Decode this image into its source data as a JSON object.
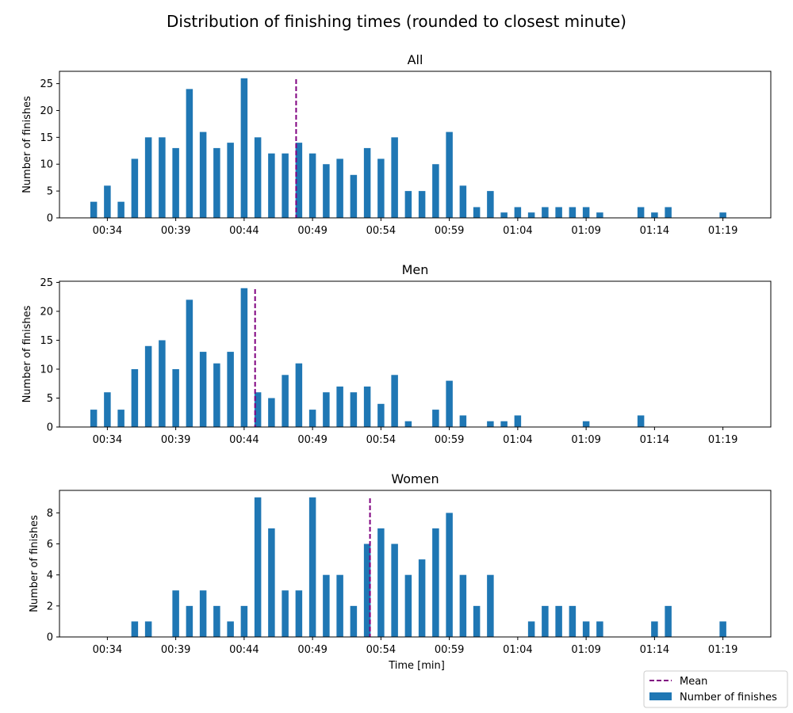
{
  "figure_title": "Distribution of finishing times (rounded to closest minute)",
  "colors": {
    "bar": "#1f77b4",
    "mean": "#800080",
    "axis": "#000000"
  },
  "legend": {
    "mean_label": "Mean",
    "bar_label": "Number of finishes",
    "placement": "lower-right outside"
  },
  "chart_data": [
    {
      "type": "bar",
      "title": "All",
      "xlabel": "",
      "ylabel": "Number of finishes",
      "x_unit": "minutes",
      "xlim": [
        30.5,
        82.5
      ],
      "ylim": [
        0,
        27.3
      ],
      "x_ticks": [
        34,
        39,
        44,
        49,
        54,
        59,
        64,
        69,
        74,
        79
      ],
      "x_tick_labels": [
        "00:34",
        "00:39",
        "00:44",
        "00:49",
        "00:54",
        "00:59",
        "01:04",
        "01:09",
        "01:14",
        "01:19"
      ],
      "y_ticks": [
        0,
        5,
        10,
        15,
        20,
        25
      ],
      "y_tick_labels": [
        "0",
        "5",
        "10",
        "15",
        "20",
        "25"
      ],
      "x": [
        33,
        34,
        35,
        36,
        37,
        38,
        39,
        40,
        41,
        42,
        43,
        44,
        45,
        46,
        47,
        48,
        49,
        50,
        51,
        52,
        53,
        54,
        55,
        56,
        57,
        58,
        59,
        60,
        61,
        62,
        63,
        64,
        65,
        66,
        67,
        68,
        69,
        70,
        73,
        74,
        75,
        79
      ],
      "values": [
        3,
        6,
        3,
        11,
        15,
        15,
        13,
        24,
        16,
        13,
        14,
        26,
        15,
        12,
        12,
        14,
        12,
        10,
        11,
        8,
        13,
        11,
        15,
        5,
        5,
        10,
        16,
        6,
        2,
        5,
        1,
        2,
        1,
        2,
        2,
        2,
        2,
        1,
        2,
        1,
        2,
        1
      ],
      "mean": 47.8
    },
    {
      "type": "bar",
      "title": "Men",
      "xlabel": "",
      "ylabel": "Number of finishes",
      "x_unit": "minutes",
      "xlim": [
        30.5,
        82.5
      ],
      "ylim": [
        0,
        25.2
      ],
      "x_ticks": [
        34,
        39,
        44,
        49,
        54,
        59,
        64,
        69,
        74,
        79
      ],
      "x_tick_labels": [
        "00:34",
        "00:39",
        "00:44",
        "00:49",
        "00:54",
        "00:59",
        "01:04",
        "01:09",
        "01:14",
        "01:19"
      ],
      "y_ticks": [
        0,
        5,
        10,
        15,
        20,
        25
      ],
      "y_tick_labels": [
        "0",
        "5",
        "10",
        "15",
        "20",
        "25"
      ],
      "x": [
        33,
        34,
        35,
        36,
        37,
        38,
        39,
        40,
        41,
        42,
        43,
        44,
        45,
        46,
        47,
        48,
        49,
        50,
        51,
        52,
        53,
        54,
        55,
        56,
        58,
        59,
        60,
        62,
        63,
        64,
        69,
        73
      ],
      "values": [
        3,
        6,
        3,
        10,
        14,
        15,
        10,
        22,
        13,
        11,
        13,
        24,
        6,
        5,
        9,
        11,
        3,
        6,
        7,
        6,
        7,
        4,
        9,
        1,
        3,
        8,
        2,
        1,
        1,
        2,
        1,
        2
      ],
      "mean": 44.8
    },
    {
      "type": "bar",
      "title": "Women",
      "xlabel": "Time [min]",
      "ylabel": "Number of finishes",
      "x_unit": "minutes",
      "xlim": [
        30.5,
        82.5
      ],
      "ylim": [
        0,
        9.45
      ],
      "x_ticks": [
        34,
        39,
        44,
        49,
        54,
        59,
        64,
        69,
        74,
        79
      ],
      "x_tick_labels": [
        "00:34",
        "00:39",
        "00:44",
        "00:49",
        "00:54",
        "00:59",
        "01:04",
        "01:09",
        "01:14",
        "01:19"
      ],
      "y_ticks": [
        0,
        2,
        4,
        6,
        8
      ],
      "y_tick_labels": [
        "0",
        "2",
        "4",
        "6",
        "8"
      ],
      "x": [
        36,
        37,
        39,
        40,
        41,
        42,
        43,
        44,
        45,
        46,
        47,
        48,
        49,
        50,
        51,
        52,
        53,
        54,
        55,
        56,
        57,
        58,
        59,
        60,
        61,
        62,
        65,
        66,
        67,
        68,
        69,
        70,
        74,
        75,
        79
      ],
      "values": [
        1,
        1,
        3,
        2,
        3,
        2,
        1,
        2,
        9,
        7,
        3,
        3,
        9,
        4,
        4,
        2,
        6,
        7,
        6,
        4,
        5,
        7,
        8,
        4,
        2,
        4,
        1,
        2,
        2,
        2,
        1,
        1,
        1,
        2,
        1
      ],
      "mean": 53.2
    }
  ]
}
